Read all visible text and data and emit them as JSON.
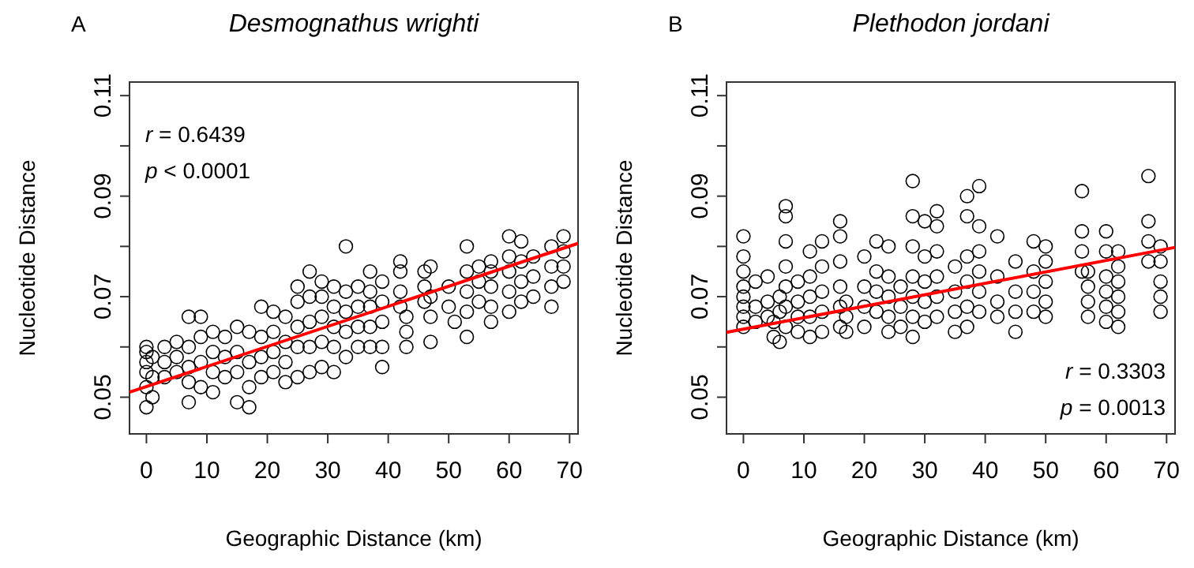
{
  "chart_data": [
    {
      "type": "scatter",
      "title": "Desmognathus wrighti",
      "xlabel": "Geographic Distance (km)",
      "ylabel": "Nucleotide Distance",
      "annotations": [
        "A",
        "r = 0.6439",
        "p < 0.0001"
      ],
      "xlim": [
        -2.8,
        71.4
      ],
      "ylim": [
        0.0427,
        0.1127
      ],
      "xticks": [
        0,
        10,
        20,
        30,
        40,
        50,
        60,
        70
      ],
      "yticks": [
        0.05,
        {
          "value": 0.06,
          "label": null
        },
        0.07,
        {
          "value": 0.08,
          "label": null
        },
        0.09,
        {
          "value": 0.1,
          "label": null
        },
        0.11
      ],
      "series": [
        {
          "marker": "circle",
          "color": "#000000",
          "x": [
            0,
            0,
            0,
            0,
            0,
            0,
            1,
            1,
            1,
            3,
            3,
            3,
            5,
            5,
            5,
            7,
            7,
            7,
            7,
            7,
            9,
            9,
            9,
            9,
            11,
            11,
            11,
            11,
            13,
            13,
            13,
            15,
            15,
            15,
            15,
            17,
            17,
            17,
            17,
            19,
            19,
            19,
            19,
            21,
            21,
            21,
            21,
            23,
            23,
            23,
            23,
            25,
            25,
            25,
            25,
            25,
            27,
            27,
            27,
            27,
            27,
            29,
            29,
            29,
            29,
            29,
            31,
            31,
            31,
            31,
            31,
            33,
            33,
            33,
            33,
            33,
            35,
            35,
            35,
            35,
            37,
            37,
            37,
            37,
            37,
            39,
            39,
            39,
            39,
            39,
            42,
            42,
            42,
            42,
            43,
            43,
            43,
            46,
            46,
            46,
            47,
            47,
            47,
            47,
            50,
            50,
            51,
            53,
            53,
            53,
            53,
            53,
            55,
            55,
            55,
            57,
            57,
            57,
            57,
            57,
            60,
            60,
            60,
            60,
            60,
            62,
            62,
            62,
            62,
            64,
            64,
            64,
            67,
            67,
            67,
            67,
            69,
            69,
            69,
            69
          ],
          "values": [
            0.048,
            0.052,
            0.055,
            0.057,
            0.059,
            0.06,
            0.05,
            0.054,
            0.058,
            0.054,
            0.057,
            0.06,
            0.055,
            0.058,
            0.061,
            0.049,
            0.053,
            0.056,
            0.06,
            0.066,
            0.052,
            0.057,
            0.062,
            0.066,
            0.051,
            0.055,
            0.059,
            0.063,
            0.054,
            0.058,
            0.062,
            0.049,
            0.055,
            0.059,
            0.064,
            0.048,
            0.052,
            0.057,
            0.063,
            0.054,
            0.058,
            0.062,
            0.068,
            0.055,
            0.059,
            0.063,
            0.067,
            0.053,
            0.057,
            0.061,
            0.066,
            0.054,
            0.06,
            0.064,
            0.069,
            0.072,
            0.055,
            0.06,
            0.065,
            0.07,
            0.075,
            0.056,
            0.061,
            0.066,
            0.07,
            0.073,
            0.055,
            0.06,
            0.064,
            0.068,
            0.072,
            0.058,
            0.063,
            0.067,
            0.071,
            0.08,
            0.06,
            0.064,
            0.068,
            0.072,
            0.06,
            0.064,
            0.068,
            0.071,
            0.075,
            0.056,
            0.06,
            0.065,
            0.069,
            0.073,
            0.068,
            0.071,
            0.075,
            0.077,
            0.06,
            0.063,
            0.066,
            0.069,
            0.072,
            0.075,
            0.061,
            0.066,
            0.07,
            0.076,
            0.068,
            0.072,
            0.065,
            0.062,
            0.067,
            0.071,
            0.075,
            0.08,
            0.069,
            0.073,
            0.076,
            0.065,
            0.068,
            0.072,
            0.075,
            0.077,
            0.067,
            0.071,
            0.075,
            0.078,
            0.082,
            0.069,
            0.073,
            0.077,
            0.081,
            0.07,
            0.074,
            0.078,
            0.068,
            0.072,
            0.076,
            0.08,
            0.073,
            0.076,
            0.079,
            0.082
          ]
        },
        {
          "type": "line",
          "color": "#ff0000",
          "x": [
            -2.8,
            71.4
          ],
          "values": [
            0.051,
            0.0806
          ]
        }
      ]
    },
    {
      "type": "scatter",
      "title": "Plethodon jordani",
      "xlabel": "Geographic Distance (km)",
      "ylabel": "Nucleotide Distance",
      "annotations": [
        "B",
        "r = 0.3303",
        "p = 0.0013"
      ],
      "xlim": [
        -2.8,
        71.4
      ],
      "ylim": [
        0.0427,
        0.1127
      ],
      "xticks": [
        0,
        10,
        20,
        30,
        40,
        50,
        60,
        70
      ],
      "yticks": [
        0.05,
        {
          "value": 0.06,
          "label": null
        },
        0.07,
        {
          "value": 0.08,
          "label": null
        },
        0.09,
        {
          "value": 0.1,
          "label": null
        },
        0.11
      ],
      "series": [
        {
          "marker": "circle",
          "color": "#000000",
          "x": [
            0,
            0,
            0,
            0,
            0,
            0,
            0,
            0,
            2,
            2,
            2,
            4,
            4,
            4,
            5,
            5,
            6,
            6,
            6,
            7,
            7,
            7,
            7,
            7,
            7,
            7,
            9,
            9,
            9,
            9,
            11,
            11,
            11,
            11,
            11,
            13,
            13,
            13,
            13,
            13,
            16,
            16,
            16,
            16,
            16,
            16,
            17,
            17,
            17,
            20,
            20,
            20,
            20,
            22,
            22,
            22,
            22,
            24,
            24,
            24,
            24,
            24,
            26,
            26,
            26,
            28,
            28,
            28,
            28,
            28,
            28,
            28,
            30,
            30,
            30,
            30,
            30,
            32,
            32,
            32,
            32,
            32,
            32,
            35,
            35,
            35,
            35,
            37,
            37,
            37,
            37,
            37,
            37,
            39,
            39,
            39,
            39,
            39,
            39,
            42,
            42,
            42,
            42,
            45,
            45,
            45,
            45,
            48,
            48,
            48,
            48,
            50,
            50,
            50,
            50,
            50,
            56,
            56,
            56,
            56,
            57,
            57,
            57,
            57,
            60,
            60,
            60,
            60,
            60,
            60,
            62,
            62,
            62,
            62,
            62,
            62,
            67,
            67,
            67,
            67,
            69,
            69,
            69,
            69,
            69
          ],
          "values": [
            0.064,
            0.066,
            0.068,
            0.07,
            0.072,
            0.075,
            0.078,
            0.082,
            0.065,
            0.068,
            0.073,
            0.066,
            0.069,
            0.074,
            0.062,
            0.065,
            0.061,
            0.067,
            0.07,
            0.064,
            0.068,
            0.072,
            0.076,
            0.081,
            0.086,
            0.088,
            0.063,
            0.066,
            0.069,
            0.073,
            0.062,
            0.066,
            0.07,
            0.074,
            0.079,
            0.063,
            0.067,
            0.071,
            0.076,
            0.081,
            0.064,
            0.068,
            0.072,
            0.077,
            0.082,
            0.085,
            0.063,
            0.066,
            0.069,
            0.064,
            0.068,
            0.072,
            0.078,
            0.067,
            0.071,
            0.075,
            0.081,
            0.063,
            0.066,
            0.07,
            0.074,
            0.08,
            0.064,
            0.068,
            0.072,
            0.062,
            0.066,
            0.07,
            0.074,
            0.08,
            0.086,
            0.093,
            0.065,
            0.069,
            0.073,
            0.078,
            0.085,
            0.066,
            0.07,
            0.074,
            0.079,
            0.084,
            0.087,
            0.063,
            0.067,
            0.071,
            0.076,
            0.064,
            0.068,
            0.073,
            0.078,
            0.086,
            0.09,
            0.067,
            0.071,
            0.075,
            0.079,
            0.084,
            0.092,
            0.066,
            0.069,
            0.074,
            0.082,
            0.063,
            0.067,
            0.071,
            0.077,
            0.067,
            0.071,
            0.075,
            0.081,
            0.066,
            0.069,
            0.073,
            0.077,
            0.08,
            0.075,
            0.079,
            0.083,
            0.091,
            0.066,
            0.069,
            0.072,
            0.075,
            0.065,
            0.068,
            0.071,
            0.074,
            0.079,
            0.083,
            0.064,
            0.067,
            0.07,
            0.073,
            0.076,
            0.079,
            0.077,
            0.081,
            0.085,
            0.094,
            0.067,
            0.07,
            0.073,
            0.077,
            0.08
          ]
        },
        {
          "type": "line",
          "color": "#ff0000",
          "x": [
            -2.8,
            71.4
          ],
          "values": [
            0.0629,
            0.0798
          ]
        }
      ]
    }
  ]
}
